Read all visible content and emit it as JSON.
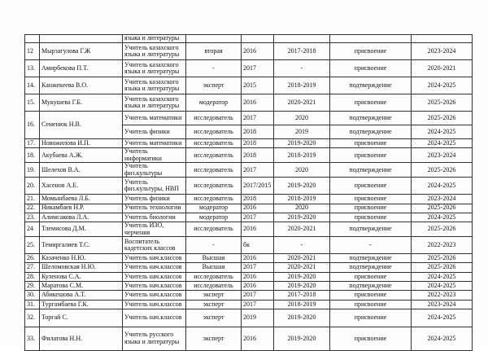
{
  "table": {
    "continued_cell": "языка и литературы",
    "rows": [
      [
        "12",
        "Мырзагулова Г.Ж",
        "Учитель казахского языка и литературы",
        "вторая",
        "2016",
        "2017-2018",
        "присвоение",
        "2023-2024"
      ],
      [
        "13.",
        "Амирбекова П.Т.",
        "Учитель казахского языка и литературы",
        "-",
        "2017",
        "-",
        "присвоение",
        "2020-2021"
      ],
      [
        "14.",
        "Канжекеева В.О.",
        "Учитель казахского языка и литературы",
        "эксперт",
        "2015",
        "2018-2019",
        "подтверждение",
        "2024-2025"
      ],
      [
        "15.",
        "Мукушева Г.Б.",
        "Учитель казахского языка и литературы",
        "модератор",
        "2016",
        "2020-2021",
        "присвоение",
        "2025-2026"
      ],
      [
        "16.",
        "Семенюк Н.В.",
        "Учитель математики",
        "исследователь",
        "2017",
        "2020",
        "подтверждение",
        "2025-2026"
      ],
      [
        "Учитель физики",
        "исследователь",
        "2018",
        "2019",
        "подтверждение",
        "2024-2025"
      ],
      [
        "17.",
        "Новожилова И.П.",
        "Учитель математики",
        "исследователь",
        "2018",
        "2019-2020",
        "присвоение",
        "2024-2025"
      ],
      [
        "18.",
        "Акубаева А.Ж.",
        "Учитель информатики",
        "исследователь",
        "2018",
        "2018-2019",
        "присвоение",
        "2023-2024"
      ],
      [
        "19.",
        "Шелехов В.А.",
        "Учитель физ.культуры",
        "исследователь",
        "2017",
        "2020",
        "подтверждение",
        "2025-2026"
      ],
      [
        "20.",
        "Хасенов А.Е.",
        "Учитель физ.культуры, НВП",
        "исследователь",
        "2017/2015",
        "2019-2020",
        "присвоение",
        "2024-2025"
      ],
      [
        "21.",
        "Момынбаева Л.Б.",
        "Учитель физики",
        "исследователь",
        "2018",
        "2018-2019",
        "присвоение",
        "2023-2024"
      ],
      [
        "22.",
        "Никамбаев Н.Р.",
        "Учитель технологии",
        "модератор",
        "2016",
        "2020",
        "присвоение",
        "2025-2026"
      ],
      [
        "23.",
        "Алимсакова Л.А.",
        "Учитель биологии",
        "модератор",
        "2017",
        "2019-2020",
        "присвоение",
        "2024-2025"
      ],
      [
        "24",
        "Тлемисова Д.М.",
        "Учитель ИЗО, черчения",
        "исследователь",
        "2016",
        "2020-2021",
        "подтверждение",
        "2025-2026"
      ],
      [
        "25.",
        "Темиргалиев Т.С.",
        "Воспитатель кадетских классов",
        "-",
        "бк",
        "-",
        "-",
        "2022-2023"
      ],
      [
        "26.",
        "Казаченко Н.Ю.",
        "Учитель нач.классов",
        "Высшая",
        "2016",
        "2020-2021",
        "подтверждение",
        "2025-2026"
      ],
      [
        "27.",
        "Шеломовская Н.Ю.",
        "Учитель нач.классов",
        "Высшая",
        "2017",
        "2020-2021",
        "подтверждение",
        "2025-2026"
      ],
      [
        "28.",
        "Куленова С.А.",
        "Учитель нач.классов",
        "исследователь",
        "2016",
        "2019-2020",
        "присвоение",
        "2024-2025"
      ],
      [
        "29.",
        "Маратова С.М.",
        "Учитель нач.классов",
        "исследователь",
        "2016",
        "2019-2020",
        "подтверждение",
        "2024-2025"
      ],
      [
        "30.",
        "Абикешова А.Т.",
        "Учитель нач.классов",
        "эксперт",
        "2017",
        "2017-2018",
        "присвоение",
        "2022-2023"
      ],
      [
        "31.",
        "Тургамбаева Г.К.",
        "Учитель нач.классов",
        "эксперт",
        "2017",
        "2018-2019",
        "присвоение",
        "2023-2024"
      ],
      [
        "32.",
        "Торгай С.",
        "Учитель нач.классов",
        "эксперт",
        "2019",
        "2019-2020",
        "присвоение",
        "2024-2025"
      ],
      [
        "33.",
        "Филатова Н.Н.",
        "Учитель русского языка и литературы",
        "эксперт",
        "2016",
        "2019-2020",
        "присвоение",
        "2024-2025"
      ]
    ]
  }
}
